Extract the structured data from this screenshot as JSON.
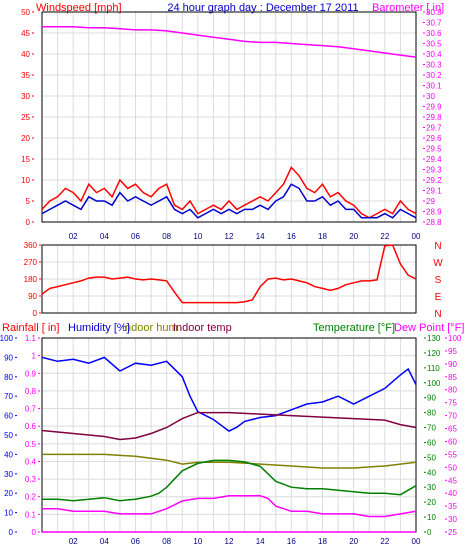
{
  "header": {
    "left_title": "Windspeed [mph]",
    "center_title": "24 hour graph day : December 17 2011",
    "right_title": "Barometer [ in]"
  },
  "colors": {
    "wind": "#ff0000",
    "wind_avg": "#0000cc",
    "baro": "#ff00ff",
    "direction": "#ff0000",
    "rain": "#ff00ff",
    "humidity": "#0000ff",
    "indoor_hum": "#808000",
    "indoor_temp": "#800040",
    "temp": "#008000",
    "dew": "#ff00ff",
    "grid": "#dcdcdc",
    "axis": "#000000"
  },
  "chart_data": [
    {
      "type": "line",
      "panel": "wind-barometer",
      "title": "24 hour graph day : December 17 2011",
      "x_ticks": [
        "02",
        "04",
        "06",
        "08",
        "10",
        "12",
        "14",
        "16",
        "18",
        "20",
        "22",
        "00"
      ],
      "x_range": [
        0,
        24
      ],
      "left_axis": {
        "label": "Windspeed [mph]",
        "range": [
          0,
          50
        ],
        "ticks": [
          "0",
          "5",
          "10",
          "15",
          "20",
          "25",
          "30",
          "35",
          "40",
          "45",
          "50"
        ]
      },
      "right_axis": {
        "label": "Barometer [ in]",
        "range": [
          28.8,
          30.8
        ],
        "ticks": [
          "28.8",
          "28.9",
          "29",
          "29.1",
          "29.2",
          "29.3",
          "29.4",
          "29.5",
          "29.6",
          "29.7",
          "29.8",
          "29.9",
          "30",
          "30.1",
          "30.2",
          "30.3",
          "30.4",
          "30.5",
          "30.6",
          "30.7",
          "30.8"
        ]
      },
      "series": [
        {
          "axis": "left",
          "color": "#ff0000",
          "x": [
            0,
            0.5,
            1,
            1.5,
            2,
            2.5,
            3,
            3.5,
            4,
            4.5,
            5,
            5.5,
            6,
            6.5,
            7,
            7.5,
            8,
            8.5,
            9,
            9.5,
            10,
            10.5,
            11,
            11.5,
            12,
            12.5,
            13,
            13.5,
            14,
            14.5,
            15,
            15.5,
            16,
            16.5,
            17,
            17.5,
            18,
            18.5,
            19,
            19.5,
            20,
            20.5,
            21,
            21.5,
            22,
            22.5,
            23,
            23.5,
            24
          ],
          "y": [
            3,
            5,
            6,
            8,
            7,
            5,
            9,
            7,
            8,
            6,
            10,
            8,
            9,
            7,
            6,
            8,
            9,
            4,
            3,
            5,
            2,
            3,
            4,
            3,
            5,
            3,
            4,
            5,
            6,
            5,
            7,
            9,
            13,
            11,
            8,
            7,
            9,
            6,
            7,
            5,
            4,
            2,
            1,
            2,
            3,
            2,
            5,
            3,
            2
          ]
        },
        {
          "axis": "left",
          "color": "#0000cc",
          "x": [
            0,
            0.5,
            1,
            1.5,
            2,
            2.5,
            3,
            3.5,
            4,
            4.5,
            5,
            5.5,
            6,
            6.5,
            7,
            7.5,
            8,
            8.5,
            9,
            9.5,
            10,
            10.5,
            11,
            11.5,
            12,
            12.5,
            13,
            13.5,
            14,
            14.5,
            15,
            15.5,
            16,
            16.5,
            17,
            17.5,
            18,
            18.5,
            19,
            19.5,
            20,
            20.5,
            21,
            21.5,
            22,
            22.5,
            23,
            23.5,
            24
          ],
          "y": [
            2,
            3,
            4,
            5,
            4,
            3,
            6,
            5,
            5,
            4,
            7,
            5,
            6,
            5,
            4,
            5,
            6,
            3,
            2,
            3,
            1,
            2,
            3,
            2,
            3,
            2,
            3,
            3,
            4,
            3,
            5,
            6,
            9,
            8,
            5,
            5,
            6,
            4,
            5,
            3,
            3,
            1,
            1,
            1,
            2,
            1,
            3,
            2,
            1
          ]
        },
        {
          "axis": "right",
          "color": "#ff00ff",
          "x": [
            0,
            1,
            2,
            3,
            4,
            5,
            6,
            7,
            8,
            9,
            10,
            11,
            12,
            13,
            14,
            15,
            16,
            17,
            18,
            19,
            20,
            21,
            22,
            23,
            24
          ],
          "y": [
            30.66,
            30.66,
            30.66,
            30.65,
            30.65,
            30.64,
            30.63,
            30.63,
            30.62,
            30.6,
            30.58,
            30.56,
            30.54,
            30.52,
            30.51,
            30.51,
            30.5,
            30.49,
            30.48,
            30.47,
            30.45,
            30.43,
            30.41,
            30.39,
            30.37
          ]
        }
      ]
    },
    {
      "type": "line",
      "panel": "wind-direction",
      "x_range": [
        0,
        24
      ],
      "left_axis": {
        "range": [
          0,
          360
        ],
        "ticks": [
          "0",
          "90",
          "180",
          "270",
          "360"
        ]
      },
      "right_axis": {
        "ticks": [
          "N",
          "W",
          "S",
          "E",
          "N"
        ]
      },
      "series": [
        {
          "axis": "left",
          "color": "#ff0000",
          "x": [
            0,
            0.5,
            1,
            1.5,
            2,
            2.5,
            3,
            3.5,
            4,
            4.5,
            5,
            5.5,
            6,
            6.5,
            7,
            7.5,
            8,
            8.5,
            9,
            9.5,
            10,
            10.5,
            11,
            11.5,
            12,
            12.5,
            13,
            13.5,
            14,
            14.5,
            15,
            15.5,
            16,
            16.5,
            17,
            17.5,
            18,
            18.5,
            19,
            19.5,
            20,
            20.5,
            21,
            21.5,
            22,
            22.5,
            23,
            23.5,
            24
          ],
          "y": [
            100,
            130,
            140,
            150,
            160,
            170,
            185,
            190,
            190,
            180,
            185,
            190,
            180,
            175,
            180,
            175,
            170,
            110,
            55,
            55,
            55,
            55,
            55,
            55,
            55,
            55,
            60,
            70,
            140,
            180,
            185,
            175,
            180,
            170,
            160,
            140,
            130,
            120,
            130,
            150,
            160,
            170,
            170,
            175,
            355,
            360,
            260,
            200,
            180
          ]
        }
      ]
    },
    {
      "type": "line",
      "panel": "rain-humidity-temperature",
      "legend": [
        "Rainfall [ in]",
        "Humidity [%]",
        "Indoor hum",
        "Indoor temp",
        "Temperature [°F]",
        "Dew Point [°F]"
      ],
      "x_ticks": [
        "02",
        "04",
        "06",
        "08",
        "10",
        "12",
        "14",
        "16",
        "18",
        "20",
        "22",
        "00"
      ],
      "x_range": [
        0,
        24
      ],
      "rain_axis": {
        "label": "Rainfall [ in]",
        "range": [
          0,
          1.1
        ],
        "ticks": [
          "0",
          "0.1",
          "0.2",
          "0.3",
          "0.4",
          "0.5",
          "0.6",
          "0.7",
          "0.8",
          "0.9",
          "1",
          "1.1"
        ]
      },
      "humidity_axis": {
        "label": "Humidity [%]",
        "range": [
          0,
          100
        ],
        "ticks": [
          "0",
          "10",
          "20",
          "30",
          "40",
          "50",
          "60",
          "70",
          "80",
          "90",
          "100"
        ]
      },
      "temp_axis": {
        "label": "Temperature [°F]",
        "range": [
          0,
          130
        ],
        "ticks": [
          "0",
          "10",
          "20",
          "30",
          "40",
          "50",
          "60",
          "70",
          "80",
          "90",
          "100",
          "110",
          "120",
          "130"
        ]
      },
      "dew_axis": {
        "label": "Dew Point [°F]",
        "range": [
          25,
          100
        ],
        "ticks": [
          "25",
          "30",
          "35",
          "40",
          "45",
          "50",
          "55",
          "60",
          "65",
          "70",
          "75",
          "80",
          "85",
          "90",
          "95",
          "100"
        ]
      },
      "series": [
        {
          "name": "Humidity [%]",
          "axis": "humidity",
          "color": "#0000ff",
          "x": [
            0,
            1,
            2,
            3,
            4,
            5,
            6,
            7,
            8,
            9,
            9.5,
            10,
            10.5,
            11,
            11.5,
            12,
            12.5,
            13,
            14,
            15,
            16,
            17,
            18,
            19,
            20,
            21,
            22,
            23,
            23.5,
            24
          ],
          "y": [
            90,
            88,
            89,
            87,
            90,
            83,
            87,
            86,
            88,
            80,
            70,
            62,
            60,
            58,
            55,
            52,
            54,
            57,
            59,
            60,
            63,
            66,
            67,
            70,
            66,
            70,
            74,
            81,
            84,
            76
          ]
        },
        {
          "name": "Indoor temp",
          "axis": "temp",
          "color": "#800040",
          "x": [
            0,
            2,
            4,
            5,
            6,
            7,
            8,
            9,
            10,
            12,
            14,
            16,
            18,
            20,
            22,
            23,
            24
          ],
          "y": [
            68,
            66,
            64,
            62,
            63,
            66,
            70,
            76,
            80,
            80,
            79,
            78,
            77,
            76,
            75,
            72,
            70
          ]
        },
        {
          "name": "Indoor hum",
          "axis": "humidity",
          "color": "#808000",
          "x": [
            0,
            2,
            4,
            6,
            8,
            9,
            10,
            12,
            14,
            16,
            18,
            19,
            20,
            22,
            23,
            24
          ],
          "y": [
            40,
            40,
            40,
            39,
            37,
            35,
            36,
            36,
            35,
            34,
            33,
            33,
            33,
            34,
            35,
            36
          ]
        },
        {
          "name": "Temperature [°F]",
          "axis": "temp",
          "color": "#008000",
          "x": [
            0,
            1,
            2,
            3,
            4,
            5,
            6,
            7,
            7.5,
            8,
            9,
            10,
            11,
            12,
            13,
            14,
            15,
            16,
            17,
            18,
            19,
            20,
            21,
            22,
            23,
            24
          ],
          "y": [
            22,
            22,
            21,
            22,
            23,
            21,
            22,
            24,
            26,
            30,
            41,
            46,
            48,
            48,
            47,
            44,
            34,
            30,
            29,
            29,
            28,
            27,
            26,
            26,
            25,
            31
          ]
        },
        {
          "name": "Dew Point [°F]",
          "axis": "dew",
          "color": "#ff00ff",
          "x": [
            0,
            1,
            2,
            3,
            4,
            5,
            6,
            7,
            8,
            9,
            10,
            11,
            12,
            13,
            14,
            14.5,
            15,
            16,
            17,
            18,
            19,
            20,
            21,
            22,
            23,
            24
          ],
          "y": [
            34,
            34,
            33,
            33,
            33,
            32,
            32,
            32,
            34,
            37,
            38,
            38,
            39,
            39,
            39,
            38,
            35,
            33,
            33,
            32,
            32,
            32,
            31,
            31,
            32,
            33
          ]
        },
        {
          "name": "Rainfall [ in]",
          "axis": "rain",
          "color": "#ff00ff",
          "x": [
            0,
            24
          ],
          "y": [
            0,
            0
          ]
        }
      ]
    }
  ]
}
